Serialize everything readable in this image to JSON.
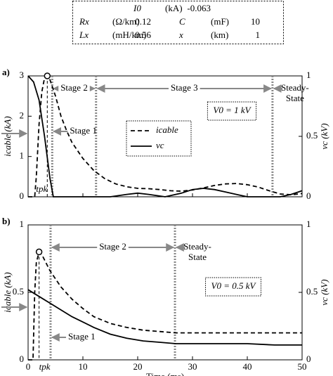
{
  "parameter_table": {
    "rows": [
      [
        "I0",
        "(kA)",
        "-0.063"
      ],
      [
        "Rx",
        "(Ω/km)",
        "0.12",
        "C",
        "(mF)",
        "10"
      ],
      [
        "Lx",
        "(mH/km)",
        "0.56",
        "x",
        "(km)",
        "1"
      ]
    ]
  },
  "chart_data": [
    {
      "type": "line",
      "panel_label": "a)",
      "ylabel": "icable (kA)",
      "y2label": "vc (kV)",
      "xlim": [
        0,
        50
      ],
      "xticks": [
        0,
        10,
        20,
        30,
        40,
        50
      ],
      "ylim": [
        0,
        3
      ],
      "yticks": [
        0,
        1,
        2,
        3
      ],
      "y2lim": [
        0,
        1
      ],
      "y2ticks": [
        0,
        0.5,
        1
      ],
      "legend": true,
      "legend_position": "center",
      "series": [
        {
          "name": "icable",
          "color": "#000000",
          "dash": "dashed",
          "x": [
            0,
            1.2,
            1.5,
            2,
            2.5,
            3,
            3.5,
            4,
            5,
            6,
            7,
            8,
            10,
            12,
            14,
            16,
            18,
            20,
            22,
            24,
            26,
            28,
            30,
            32,
            34,
            36,
            38,
            40,
            42,
            44,
            46,
            48,
            50
          ],
          "values": [
            0,
            0,
            0.5,
            1.8,
            2.6,
            2.95,
            3.0,
            2.9,
            2.5,
            2.0,
            1.65,
            1.35,
            0.95,
            0.65,
            0.45,
            0.32,
            0.25,
            0.21,
            0.2,
            0.18,
            0.15,
            0.14,
            0.17,
            0.22,
            0.28,
            0.32,
            0.33,
            0.3,
            0.24,
            0.15,
            0.07,
            0.05,
            0.08
          ]
        },
        {
          "name": "vc",
          "color": "#000000",
          "dash": "solid",
          "axis": "y2",
          "x": [
            0,
            1,
            2,
            3,
            4,
            4.6,
            10,
            15,
            18,
            20,
            22,
            25,
            28,
            30,
            32,
            34,
            36,
            38,
            40,
            42,
            44,
            46,
            48,
            50
          ],
          "values": [
            1,
            0.95,
            0.8,
            0.5,
            0.15,
            0,
            0,
            0,
            0.02,
            0.03,
            0.02,
            0,
            0.03,
            0.06,
            0.07,
            0.06,
            0.04,
            0.02,
            0,
            0,
            0,
            0,
            0.02,
            0.05
          ]
        }
      ],
      "stage_lines": [
        4.4,
        12.4,
        44.6
      ],
      "stage_labels": [
        "Stage 1",
        "Stage 2",
        "Stage 3"
      ],
      "steady_state": [
        "Steady-",
        "State"
      ],
      "source_note": "V0 = 1 kV",
      "tpk_label": "tpk"
    },
    {
      "type": "line",
      "panel_label": "b)",
      "ylabel": "icable (kA)",
      "y2label": "vc (kV)",
      "xlabel": "Time (ms)",
      "xlim": [
        0,
        50
      ],
      "xticks": [
        0,
        10,
        20,
        30,
        40,
        50
      ],
      "ylim": [
        0,
        1
      ],
      "yticks": [
        0,
        0.5,
        1
      ],
      "y2lim": [
        0,
        1
      ],
      "y2ticks": [
        0,
        0.5,
        1
      ],
      "legend": false,
      "series": [
        {
          "color": "#000000",
          "dash": "dashed",
          "x": [
            0,
            0.9,
            1.2,
            1.5,
            2,
            2.5,
            3,
            4,
            5,
            6,
            8,
            10,
            12,
            15,
            18,
            21,
            24,
            27,
            30,
            35,
            40,
            45,
            50
          ],
          "values": [
            0,
            0,
            0.5,
            0.72,
            0.8,
            0.78,
            0.74,
            0.66,
            0.6,
            0.54,
            0.45,
            0.38,
            0.32,
            0.27,
            0.24,
            0.22,
            0.21,
            0.2,
            0.2,
            0.2,
            0.2,
            0.2,
            0.2
          ]
        },
        {
          "color": "#000000",
          "dash": "solid",
          "axis": "y2",
          "x": [
            0,
            2,
            4,
            6,
            8,
            10,
            12,
            15,
            18,
            21,
            24,
            27,
            30,
            35,
            40,
            45,
            50
          ],
          "values": [
            0.52,
            0.47,
            0.42,
            0.37,
            0.32,
            0.28,
            0.24,
            0.19,
            0.16,
            0.14,
            0.13,
            0.12,
            0.12,
            0.12,
            0.12,
            0.11,
            0.11
          ]
        }
      ],
      "stage_lines": [
        4.1,
        26.8
      ],
      "stage_labels": [
        "Stage 1",
        "Stage 2"
      ],
      "steady_state": [
        "Steady-",
        "State"
      ],
      "source_note": "V0 = 0.5 kV",
      "tpk_label": "tpk"
    }
  ]
}
